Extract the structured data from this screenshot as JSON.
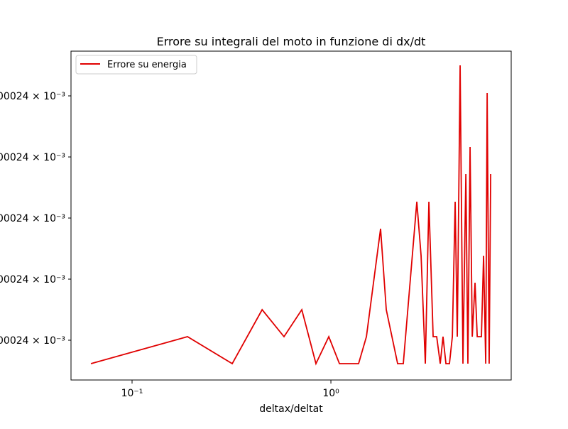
{
  "chart_data": {
    "type": "line",
    "title": "Errore su integrali del moto in funzione di dx/dt",
    "x_label": "deltax/deltat",
    "x_scale": "log",
    "xlim": [
      0.0493,
      8.07
    ],
    "xticks": [
      {
        "value": 0.1,
        "label": "10⁻¹"
      },
      {
        "value": 1,
        "label": "10⁰"
      }
    ],
    "ylim": [
      0.0010002398698,
      0.0010002409465
    ],
    "yticks": [
      {
        "value": 0.00100024,
        "label": "00024 × 10⁻³"
      },
      {
        "value": 0.0010002402,
        "label": "00024 × 10⁻³"
      },
      {
        "value": 0.0010002404,
        "label": "00024 × 10⁻³"
      },
      {
        "value": 0.0010002406,
        "label": "00024 × 10⁻³"
      },
      {
        "value": 0.0010002408,
        "label": "00024 × 10⁻³"
      }
    ],
    "legend": "upper left",
    "x": [
      0.0621,
      0.19,
      0.319,
      0.451,
      0.581,
      0.714,
      0.841,
      0.976,
      1.104,
      1.378,
      1.509,
      1.778,
      1.899,
      2.166,
      2.313,
      2.705,
      2.842,
      2.985,
      3.111,
      3.268,
      3.405,
      3.548,
      3.664,
      3.79,
      3.947,
      4.082,
      4.217,
      4.322,
      4.467,
      4.615,
      4.773,
      4.887,
      5.012,
      5.14,
      5.309,
      5.445,
      5.715,
      5.861,
      6.008,
      6.109,
      6.252,
      6.363
    ],
    "series": [
      {
        "name": "Errore su energia",
        "color": "#e00000",
        "values": [
          0.0010002399233,
          0.0010002400116,
          0.0010002399233,
          0.0010002401,
          0.0010002400116,
          0.0010002401,
          0.0010002399233,
          0.0010002400116,
          0.0010002399233,
          0.0010002399233,
          0.0010002400116,
          0.0010002403651,
          0.0010002401,
          0.0010002399233,
          0.0010002399233,
          0.0010002404535,
          0.0010002402767,
          0.0010002399233,
          0.0010002404535,
          0.0010002400116,
          0.0010002400116,
          0.0010002399233,
          0.0010002400116,
          0.0010002399233,
          0.0010002399233,
          0.0010002400116,
          0.0010002404535,
          0.0010002400116,
          0.0010002409,
          0.0010002399233,
          0.0010002405442,
          0.0010002399233,
          0.0010002406326,
          0.0010002400116,
          0.0010002401884,
          0.0010002400116,
          0.0010002400116,
          0.0010002402767,
          0.0010002399233,
          0.0010002408093,
          0.0010002399233,
          0.0010002405442
        ]
      }
    ]
  }
}
